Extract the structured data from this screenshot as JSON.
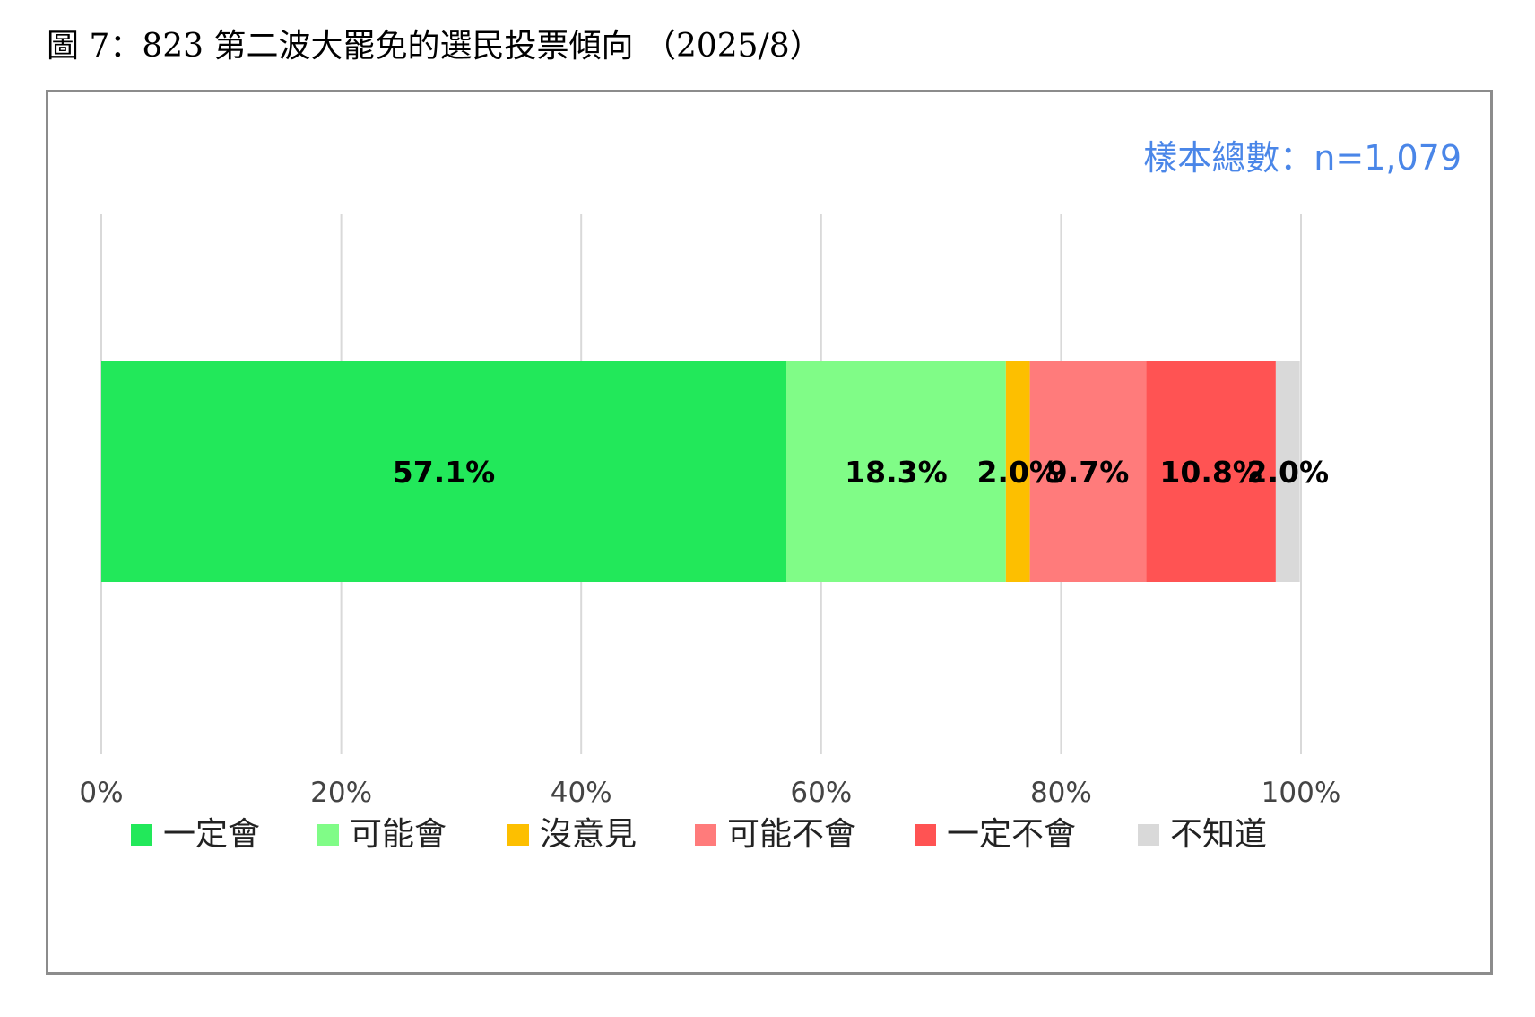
{
  "figure": {
    "title": "圖 7：823 第二波大罷免的選民投票傾向 （2025/8）",
    "sample_note": "樣本總數：n=1,079"
  },
  "chart_data": {
    "type": "bar",
    "orientation": "horizontal",
    "stacked": true,
    "normalized_percent": true,
    "categories": [
      ""
    ],
    "series": [
      {
        "name": "一定會",
        "values": [
          57.1
        ],
        "label": "57.1%",
        "color": "#22e85a"
      },
      {
        "name": "可能會",
        "values": [
          18.3
        ],
        "label": "18.3%",
        "color": "#80fc87"
      },
      {
        "name": "沒意見",
        "values": [
          2.0
        ],
        "label": "2.0%",
        "color": "#fdbf00"
      },
      {
        "name": "可能不會",
        "values": [
          9.7
        ],
        "label": "9.7%",
        "color": "#ff7b7b"
      },
      {
        "name": "一定不會",
        "values": [
          10.8
        ],
        "label": "10.8%",
        "color": "#ff5353"
      },
      {
        "name": "不知道",
        "values": [
          2.0
        ],
        "label": "2.0%",
        "color": "#d9d9d9"
      }
    ],
    "xlim": [
      0,
      100
    ],
    "xticks": [
      0,
      20,
      40,
      60,
      80,
      100
    ],
    "xtick_labels": [
      "0%",
      "20%",
      "40%",
      "60%",
      "80%",
      "100%"
    ],
    "grid": true,
    "gridline_color": "#d9d9d9",
    "legend_position": "bottom",
    "title": "",
    "xlabel": "",
    "ylabel": ""
  }
}
